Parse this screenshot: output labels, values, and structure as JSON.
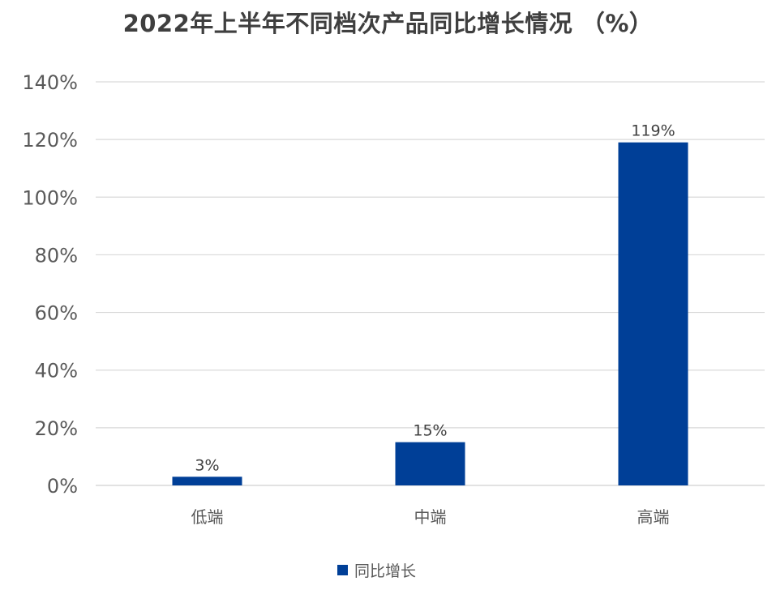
{
  "chart_data": {
    "type": "bar",
    "title": "2022年上半年不同档次产品同比增长情况 （%）",
    "categories": [
      "低端",
      "中端",
      "高端"
    ],
    "series": [
      {
        "name": "同比增长",
        "values": [
          3,
          15,
          119
        ],
        "labels": [
          "3%",
          "15%",
          "119%"
        ]
      }
    ],
    "ylim": [
      0,
      140
    ],
    "yticks": [
      0,
      20,
      40,
      60,
      80,
      100,
      120,
      140
    ],
    "ytick_labels": [
      "0%",
      "20%",
      "40%",
      "60%",
      "80%",
      "100%",
      "120%",
      "140%"
    ],
    "xlabel": "",
    "ylabel": "",
    "grid": true,
    "legend_position": "bottom",
    "colors": {
      "bar": "#003f97",
      "grid": "#d9d9d9",
      "axis_text": "#595959",
      "label_text": "#404040"
    }
  }
}
